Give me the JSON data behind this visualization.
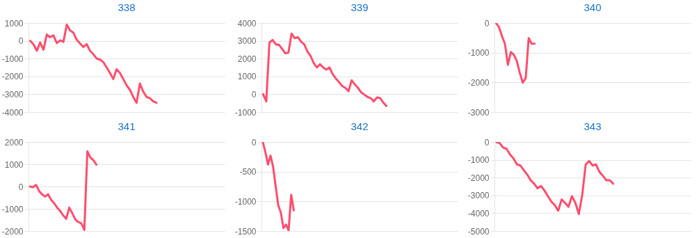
{
  "chart_data": [
    {
      "type": "line",
      "title": "338",
      "grid": "y",
      "ylim": [
        -4000,
        1000
      ],
      "yticks": [
        -4000,
        -3000,
        -2000,
        -1000,
        0,
        1000
      ],
      "categories": [
        null,
        null,
        null,
        null,
        null,
        null,
        null,
        null,
        null,
        null,
        null,
        null,
        null,
        null,
        null,
        null,
        null,
        null,
        null,
        null,
        null,
        null,
        null,
        null,
        null,
        null,
        null,
        null,
        null,
        null,
        null,
        null,
        null,
        null,
        null,
        null,
        null,
        null,
        null,
        null,
        null,
        null,
        null,
        null,
        null,
        null,
        null,
        null,
        null,
        null,
        null,
        null,
        null,
        null,
        null,
        null,
        null,
        null,
        null
      ],
      "series": [
        {
          "color": "#ff4d6d",
          "values": [
            0,
            -200,
            -560,
            -100,
            -500,
            350,
            200,
            300,
            -130,
            20,
            -60,
            900,
            580,
            450,
            60,
            -150,
            -350,
            -190,
            -560,
            -750,
            -1000,
            -1050,
            -1200,
            -1500,
            -1800,
            -2150,
            -1600,
            -1800,
            -2150,
            -2500,
            -2750,
            -3150,
            -3480,
            -2400,
            -2850,
            -3150,
            -3220,
            -3400,
            -3480,
            null,
            null,
            null,
            null,
            null,
            null,
            null,
            null,
            null,
            null,
            null,
            null,
            null,
            null,
            null,
            null,
            null,
            null,
            null,
            null
          ]
        }
      ]
    },
    {
      "type": "line",
      "title": "339",
      "grid": "y",
      "ylim": [
        -1000,
        4000
      ],
      "yticks": [
        -1000,
        0,
        1000,
        2000,
        3000,
        4000
      ],
      "categories": [
        null,
        null,
        null,
        null,
        null,
        null,
        null,
        null,
        null,
        null,
        null,
        null,
        null,
        null,
        null,
        null,
        null,
        null,
        null,
        null,
        null,
        null,
        null,
        null,
        null,
        null,
        null,
        null,
        null,
        null,
        null,
        null,
        null,
        null,
        null,
        null,
        null,
        null,
        null,
        null,
        null,
        null,
        null,
        null,
        null,
        null,
        null,
        null,
        null,
        null,
        null,
        null,
        null,
        null,
        null,
        null,
        null,
        null,
        null,
        null,
        null,
        null
      ],
      "series": [
        {
          "color": "#ff4d6d",
          "values": [
            0,
            -400,
            2900,
            3050,
            2800,
            2780,
            2550,
            2300,
            2330,
            3400,
            3150,
            3200,
            2950,
            2800,
            2400,
            2150,
            1750,
            1500,
            1680,
            1500,
            1380,
            1500,
            1120,
            880,
            680,
            460,
            360,
            170,
            780,
            550,
            360,
            100,
            -20,
            -150,
            -220,
            -400,
            -180,
            -220,
            -470,
            -660,
            null,
            null,
            null,
            null,
            null,
            null,
            null,
            null,
            null,
            null,
            null,
            null,
            null,
            null,
            null,
            null,
            null,
            null,
            null,
            null,
            null,
            null
          ]
        }
      ]
    },
    {
      "type": "line",
      "title": "340",
      "grid": "y",
      "ylim": [
        -3000,
        0
      ],
      "yticks": [
        -3000,
        -2000,
        -1000,
        0
      ],
      "categories": [
        null,
        null,
        null,
        null,
        null,
        null,
        null,
        null,
        null,
        null,
        null,
        null,
        null,
        null,
        null,
        null,
        null,
        null,
        null,
        null,
        null,
        null,
        null,
        null,
        null,
        null,
        null,
        null,
        null,
        null,
        null,
        null,
        null,
        null,
        null,
        null,
        null,
        null,
        null,
        null,
        null,
        null,
        null,
        null,
        null,
        null,
        null,
        null,
        null,
        null,
        null,
        null,
        null,
        null,
        null,
        null,
        null,
        null,
        null,
        null,
        null,
        null,
        null,
        null,
        null,
        null
      ],
      "series": [
        {
          "color": "#ff4d6d",
          "values": [
            0,
            -140,
            -440,
            -700,
            -1410,
            -980,
            -1070,
            -1280,
            -1680,
            -2010,
            -1860,
            -510,
            -700,
            -700,
            null,
            null,
            null,
            null,
            null,
            null,
            null,
            null,
            null,
            null,
            null,
            null,
            null,
            null,
            null,
            null,
            null,
            null,
            null,
            null,
            null,
            null,
            null,
            null,
            null,
            null,
            null,
            null,
            null,
            null,
            null,
            null,
            null,
            null,
            null,
            null,
            null,
            null,
            null,
            null,
            null,
            null,
            null,
            null,
            null,
            null,
            null,
            null,
            null,
            null,
            null,
            null
          ]
        }
      ]
    },
    {
      "type": "line",
      "title": "341",
      "grid": "y",
      "ylim": [
        -2000,
        2000
      ],
      "yticks": [
        -2000,
        -1000,
        0,
        1000,
        2000
      ],
      "categories": [
        null,
        null,
        null,
        null,
        null,
        null,
        null,
        null,
        null,
        null,
        null,
        null,
        null,
        null,
        null,
        null,
        null,
        null,
        null,
        null,
        null,
        null,
        null,
        null,
        null,
        null,
        null,
        null,
        null,
        null,
        null,
        null,
        null,
        null,
        null,
        null,
        null,
        null,
        null,
        null,
        null,
        null,
        null,
        null,
        null,
        null,
        null,
        null,
        null,
        null,
        null,
        null,
        null,
        null,
        null,
        null,
        null,
        null,
        null,
        null,
        null,
        null,
        null,
        null,
        null
      ],
      "series": [
        {
          "color": "#ff4d6d",
          "values": [
            0,
            -30,
            70,
            -200,
            -350,
            -450,
            -350,
            -600,
            -750,
            -950,
            -1100,
            -1300,
            -1450,
            -950,
            -1200,
            -1480,
            -1600,
            -1650,
            -1950,
            1580,
            1300,
            1180,
            980,
            null,
            null,
            null,
            null,
            null,
            null,
            null,
            null,
            null,
            null,
            null,
            null,
            null,
            null,
            null,
            null,
            null,
            null,
            null,
            null,
            null,
            null,
            null,
            null,
            null,
            null,
            null,
            null,
            null,
            null,
            null,
            null,
            null,
            null,
            null,
            null,
            null,
            null,
            null,
            null,
            null,
            null
          ]
        }
      ]
    },
    {
      "type": "line",
      "title": "342",
      "grid": "y",
      "ylim": [
        -1500,
        0
      ],
      "yticks": [
        -1500,
        -1000,
        -500,
        0
      ],
      "categories": [
        null,
        null,
        null,
        null,
        null,
        null,
        null,
        null,
        null,
        null,
        null,
        null,
        null,
        null,
        null,
        null,
        null,
        null,
        null,
        null,
        null,
        null,
        null,
        null,
        null,
        null,
        null,
        null,
        null,
        null,
        null,
        null,
        null,
        null,
        null,
        null,
        null,
        null,
        null,
        null,
        null,
        null,
        null,
        null,
        null,
        null,
        null,
        null,
        null,
        null,
        null,
        null,
        null,
        null,
        null,
        null,
        null,
        null,
        null,
        null,
        null,
        null,
        null,
        null,
        null,
        null,
        null,
        null,
        null,
        null,
        null,
        null,
        null,
        null,
        null,
        null
      ],
      "series": [
        {
          "color": "#ff4d6d",
          "values": [
            0,
            -170,
            -380,
            -230,
            -420,
            -750,
            -1070,
            -1190,
            -1450,
            -1390,
            -1490,
            -890,
            -1150,
            null,
            null,
            null,
            null,
            null,
            null,
            null,
            null,
            null,
            null,
            null,
            null,
            null,
            null,
            null,
            null,
            null,
            null,
            null,
            null,
            null,
            null,
            null,
            null,
            null,
            null,
            null,
            null,
            null,
            null,
            null,
            null,
            null,
            null,
            null,
            null,
            null,
            null,
            null,
            null,
            null,
            null,
            null,
            null,
            null,
            null,
            null,
            null,
            null,
            null,
            null,
            null,
            null,
            null,
            null,
            null,
            null,
            null,
            null,
            null,
            null,
            null,
            null
          ]
        }
      ]
    },
    {
      "type": "line",
      "title": "343",
      "grid": "y",
      "ylim": [
        -5000,
        0
      ],
      "yticks": [
        -5000,
        -4000,
        -3000,
        -2000,
        -1000,
        0
      ],
      "categories": [
        null,
        null,
        null,
        null,
        null,
        null,
        null,
        null,
        null,
        null,
        null,
        null,
        null,
        null,
        null,
        null,
        null,
        null,
        null,
        null,
        null,
        null,
        null,
        null,
        null,
        null,
        null,
        null,
        null,
        null,
        null,
        null,
        null,
        null,
        null,
        null,
        null,
        null,
        null,
        null,
        null,
        null,
        null,
        null,
        null,
        null,
        null,
        null,
        null,
        null,
        null,
        null,
        null,
        null,
        null,
        null,
        null
      ],
      "series": [
        {
          "color": "#ff4d6d",
          "values": [
            0,
            -60,
            -320,
            -380,
            -700,
            -920,
            -1260,
            -1320,
            -1580,
            -1830,
            -2150,
            -2340,
            -2600,
            -2470,
            -2720,
            -3040,
            -3350,
            -3540,
            -3860,
            -3230,
            -3420,
            -3640,
            -3040,
            -3420,
            -4050,
            -2970,
            -1260,
            -1070,
            -1320,
            -1260,
            -1680,
            -1900,
            -2150,
            -2150,
            -2340,
            null,
            null,
            null,
            null,
            null,
            null,
            null,
            null,
            null,
            null,
            null,
            null,
            null,
            null,
            null,
            null,
            null,
            null,
            null,
            null,
            null,
            null
          ]
        }
      ]
    }
  ]
}
